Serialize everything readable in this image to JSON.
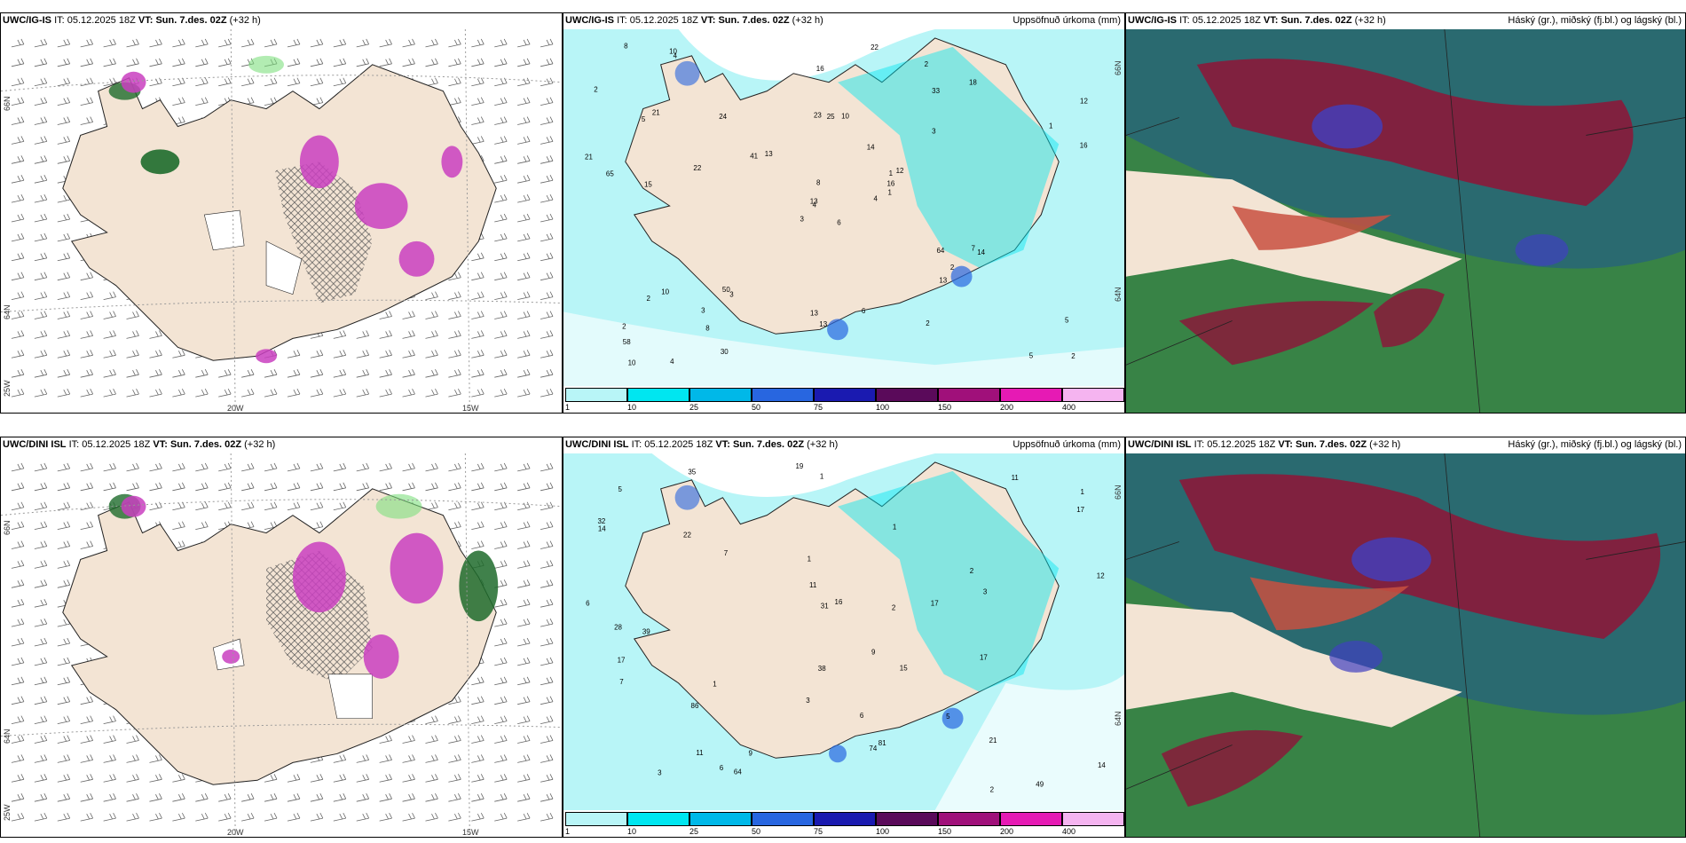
{
  "rows": [
    {
      "model": "UWC/IG-IS",
      "it_label": "IT:",
      "it_value": "05.12.2025 18Z",
      "vt_label": "VT:",
      "vt_value": "Sun. 7.des. 02Z",
      "lead": "(+32 h)",
      "left_ticks": {
        "lat1": "66N",
        "lat2": "64N",
        "lon_w": "25W",
        "lon1": "20W",
        "lon2": "15W"
      },
      "mid_ticks": {
        "lat1": "66N",
        "lat2": "64N"
      },
      "precip_labels": [
        "6",
        "5",
        "4",
        "2",
        "1",
        "3",
        "2",
        "10",
        "33",
        "4",
        "4",
        "2",
        "15",
        "12",
        "3",
        "3",
        "4",
        "23",
        "14",
        "10",
        "13",
        "58",
        "8",
        "25",
        "12",
        "14",
        "21",
        "16",
        "65",
        "64",
        "16",
        "13",
        "13",
        "8",
        "24",
        "18",
        "50",
        "5",
        "5",
        "7",
        "22",
        "41",
        "22",
        "13",
        "30",
        "21",
        "16",
        "10",
        "13",
        "1",
        "2",
        "1",
        "2",
        "2",
        "2",
        "3",
        "10",
        "8",
        "6"
      ]
    },
    {
      "model": "UWC/DINI ISL",
      "it_label": "IT:",
      "it_value": "05.12.2025 18Z",
      "vt_label": "VT:",
      "vt_value": "Sun. 7.des. 02Z",
      "lead": "(+32 h)",
      "left_ticks": {
        "lat1": "66N",
        "lat2": "64N",
        "lon_w": "25W",
        "lon1": "20W",
        "lon2": "15W"
      },
      "mid_ticks": {
        "lat1": "66N",
        "lat2": "64N"
      },
      "precip_labels": [
        "6",
        "1",
        "2",
        "1",
        "32",
        "49",
        "39",
        "1",
        "1",
        "11",
        "16",
        "17",
        "19",
        "14",
        "22",
        "86",
        "81",
        "28",
        "9",
        "3",
        "5",
        "21",
        "17",
        "11",
        "11",
        "31",
        "15",
        "35",
        "64",
        "74",
        "17",
        "2",
        "2",
        "3",
        "6",
        "7",
        "3",
        "5",
        "9",
        "7",
        "6",
        "17",
        "14",
        "12",
        "38",
        "1"
      ]
    }
  ],
  "panels": {
    "precip_title": "Uppsöfnuð úrkoma (mm)",
    "cloud_title": "Háský (gr.), miðský (fj.bl.) og lágský (bl.)"
  },
  "colorbar": {
    "labels": [
      "1",
      "10",
      "25",
      "50",
      "75",
      "100",
      "150",
      "200",
      "400"
    ],
    "colors": [
      "#b8f5f7",
      "#00e6f0",
      "#00b8e8",
      "#2866e0",
      "#1a1ab0",
      "#5a0a5a",
      "#a0107a",
      "#e61ab4",
      "#f5b4f0"
    ]
  },
  "colors": {
    "land": "#f3e4d4",
    "wind_green": "#1e6b2c",
    "wind_magenta": "#c93fc0",
    "precip_cyan": "#b8f5f7",
    "cloud_teal": "#2a6a70",
    "cloud_red": "#8a1a3a",
    "cloud_green": "#3c8a3c",
    "cloud_blue": "#4040c0"
  }
}
